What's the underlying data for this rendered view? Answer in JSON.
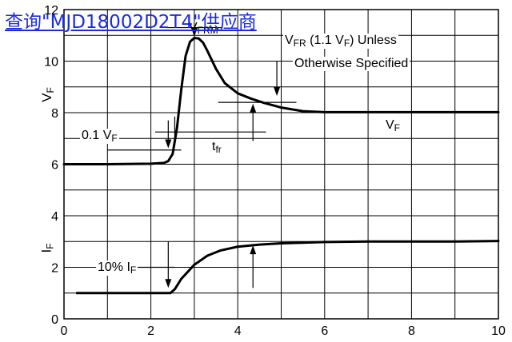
{
  "watermark_link": "查询\"MJD18002D2T4\"供应商",
  "chart_data": {
    "type": "line",
    "xlim": [
      0,
      10
    ],
    "ylim": [
      0,
      12
    ],
    "x_ticks": [
      "0",
      "2",
      "4",
      "6",
      "8",
      "10"
    ],
    "y_ticks": [
      "0",
      "2",
      "4",
      "6",
      "8",
      "10",
      "12"
    ],
    "grid": true,
    "y_axis_labels": [
      {
        "main": "V",
        "sub": "F"
      },
      {
        "main": "I",
        "sub": "F"
      }
    ],
    "series": [
      {
        "x": [
          0,
          1,
          2,
          2.3,
          2.4,
          2.5,
          2.6,
          2.7,
          2.8,
          2.9,
          3.0,
          3.1,
          3.2,
          3.3,
          3.5,
          3.7,
          4.0,
          4.3,
          4.6,
          5.0,
          5.5,
          6.0,
          7,
          8,
          9,
          10
        ],
        "y": [
          6.0,
          6.0,
          6.02,
          6.05,
          6.12,
          6.4,
          7.4,
          8.9,
          10.2,
          10.75,
          10.9,
          10.88,
          10.72,
          10.4,
          9.7,
          9.15,
          8.75,
          8.55,
          8.38,
          8.2,
          8.06,
          8.02,
          8.02,
          8.02,
          8.02,
          8.02
        ]
      },
      {
        "x": [
          0.3,
          1,
          2.3,
          2.45,
          2.55,
          2.7,
          3.0,
          3.3,
          3.6,
          4.0,
          4.5,
          5.0,
          6.0,
          7.0,
          8.0,
          9.0,
          10.0
        ],
        "y": [
          1.0,
          1.0,
          1.0,
          1.0,
          1.15,
          1.55,
          2.1,
          2.45,
          2.65,
          2.8,
          2.88,
          2.93,
          2.98,
          3.0,
          3.0,
          3.0,
          3.02
        ]
      }
    ],
    "annotations": {
      "vfrm": {
        "main": "V",
        "sub": "FRM"
      },
      "vfr_line1": {
        "v1": "V",
        "s1": "FR",
        "mid": " (1.1 V",
        "s2": "F",
        "end": ") Unless"
      },
      "vfr_line2": "Otherwise Specified",
      "v01": {
        "pre": "0.1 V",
        "sub": "F"
      },
      "tfr": {
        "main": "t",
        "sub": "fr"
      },
      "vf_label": {
        "main": "V",
        "sub": "F"
      },
      "if10": {
        "pre": "10% I",
        "sub": "F"
      }
    }
  }
}
